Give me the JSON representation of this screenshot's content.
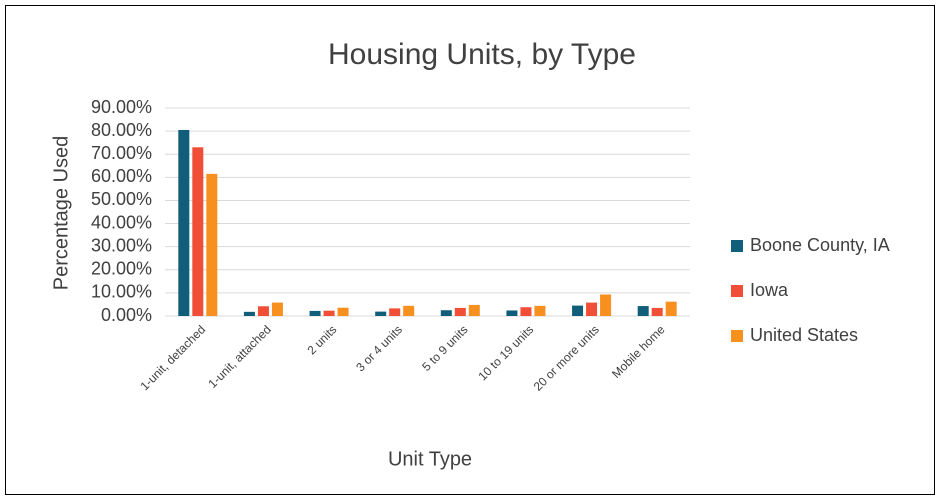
{
  "chart_data": {
    "type": "bar",
    "title": "Housing Units, by Type",
    "x_label": "Unit Type",
    "y_label": "Percentage Used",
    "categories": [
      "1-unit, detached",
      "1-unit, attached",
      "2 units",
      "3 or 4 units",
      "5 to 9 units",
      "10 to 19 units",
      "20 or more units",
      "Mobile home"
    ],
    "series": [
      {
        "name": "Boone County, IA",
        "color": "#115e7b",
        "values": [
          80.5,
          1.8,
          2.2,
          1.9,
          2.5,
          2.4,
          4.5,
          4.3
        ]
      },
      {
        "name": "Iowa",
        "color": "#f04e36",
        "values": [
          73,
          4.2,
          2.3,
          3.3,
          3.5,
          3.8,
          5.8,
          3.5
        ]
      },
      {
        "name": "United States",
        "color": "#f7901e",
        "values": [
          61.5,
          5.8,
          3.6,
          4.4,
          4.8,
          4.4,
          9.3,
          6.2
        ]
      }
    ],
    "ylim": [
      0,
      90
    ],
    "yticks": [
      {
        "value": 0,
        "label": "0.00%"
      },
      {
        "value": 10,
        "label": "10.00%"
      },
      {
        "value": 20,
        "label": "20.00%"
      },
      {
        "value": 30,
        "label": "30.00%"
      },
      {
        "value": 40,
        "label": "40.00%"
      },
      {
        "value": 50,
        "label": "50.00%"
      },
      {
        "value": 60,
        "label": "60.00%"
      },
      {
        "value": 70,
        "label": "70.00%"
      },
      {
        "value": 80,
        "label": "80.00%"
      },
      {
        "value": 90,
        "label": "90.00%"
      }
    ],
    "grid": true,
    "legend": "right"
  }
}
